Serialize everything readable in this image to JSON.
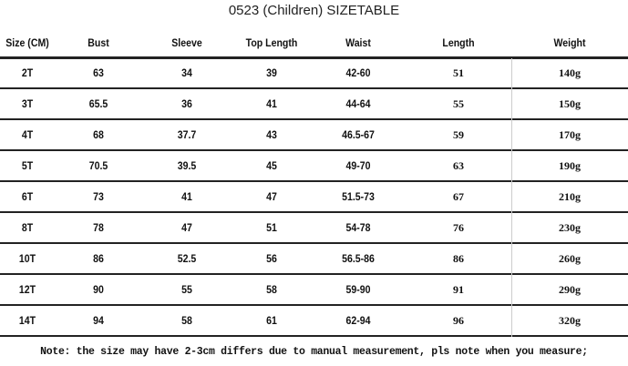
{
  "title": "0523 (Children) SIZETABLE",
  "headers": [
    "Size (CM)",
    "Bust",
    "Sleeve",
    "Top Length",
    "Waist",
    "Length",
    "Weight"
  ],
  "rows": [
    [
      "2T",
      "63",
      "34",
      "39",
      "42-60",
      "51",
      "140g"
    ],
    [
      "3T",
      "65.5",
      "36",
      "41",
      "44-64",
      "55",
      "150g"
    ],
    [
      "4T",
      "68",
      "37.7",
      "43",
      "46.5-67",
      "59",
      "170g"
    ],
    [
      "5T",
      "70.5",
      "39.5",
      "45",
      "49-70",
      "63",
      "190g"
    ],
    [
      "6T",
      "73",
      "41",
      "47",
      "51.5-73",
      "67",
      "210g"
    ],
    [
      "8T",
      "78",
      "47",
      "51",
      "54-78",
      "76",
      "230g"
    ],
    [
      "10T",
      "86",
      "52.5",
      "56",
      "56.5-86",
      "86",
      "260g"
    ],
    [
      "12T",
      "90",
      "55",
      "58",
      "59-90",
      "91",
      "290g"
    ],
    [
      "14T",
      "94",
      "58",
      "61",
      "62-94",
      "96",
      "320g"
    ]
  ],
  "note": "Note: the size may have 2-3cm differs due to manual measurement, pls note when you measure;"
}
